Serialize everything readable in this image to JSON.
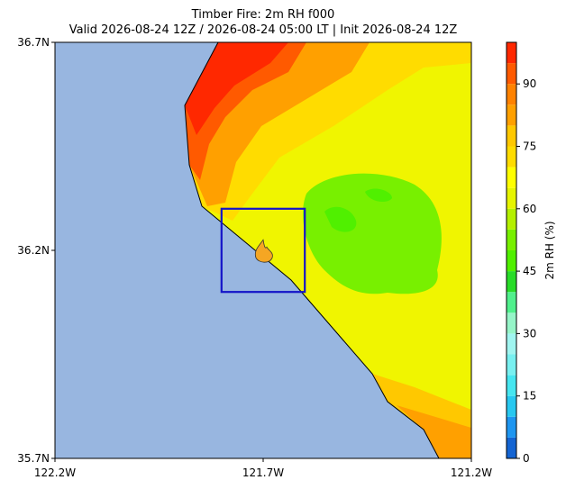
{
  "chart_data": {
    "type": "map",
    "title": "Timber Fire: 2m RH f000",
    "subtitle": "Valid 2026-08-24 12Z / 2026-08-24 05:00 LT | Init 2026-08-24 12Z",
    "xlim": [
      -122.2,
      -121.2
    ],
    "ylim": [
      35.7,
      36.7
    ],
    "xticks": [
      {
        "value": -122.2,
        "label": "122.2W"
      },
      {
        "value": -121.7,
        "label": "121.7W"
      },
      {
        "value": -121.2,
        "label": "121.2W"
      }
    ],
    "yticks": [
      {
        "value": 35.7,
        "label": "35.7N"
      },
      {
        "value": 36.2,
        "label": "36.2N"
      },
      {
        "value": 36.7,
        "label": "36.7N"
      }
    ],
    "fire_box": {
      "lon": [
        -121.8,
        -121.6
      ],
      "lat": [
        36.1,
        36.3
      ],
      "color": "#1414c8"
    },
    "fire_point": {
      "lon": -121.7,
      "lat": 36.195
    },
    "colorbar": {
      "label": "2m RH (%)",
      "levels": [
        0,
        5,
        10,
        15,
        20,
        25,
        30,
        35,
        40,
        45,
        50,
        55,
        60,
        65,
        70,
        75,
        80,
        85,
        90,
        95,
        100
      ],
      "colors": [
        "#1464d2",
        "#1e96f0",
        "#28c8f0",
        "#46e6f0",
        "#78f0f0",
        "#a0f5f0",
        "#96f5c8",
        "#50f08c",
        "#28dc28",
        "#50f000",
        "#78f000",
        "#b4f000",
        "#e6f500",
        "#ffff00",
        "#ffdc00",
        "#ffc800",
        "#ffa000",
        "#ff8200",
        "#ff5a00",
        "#ff2800"
      ],
      "ticks": [
        0,
        15,
        30,
        45,
        60,
        75,
        90
      ]
    }
  }
}
